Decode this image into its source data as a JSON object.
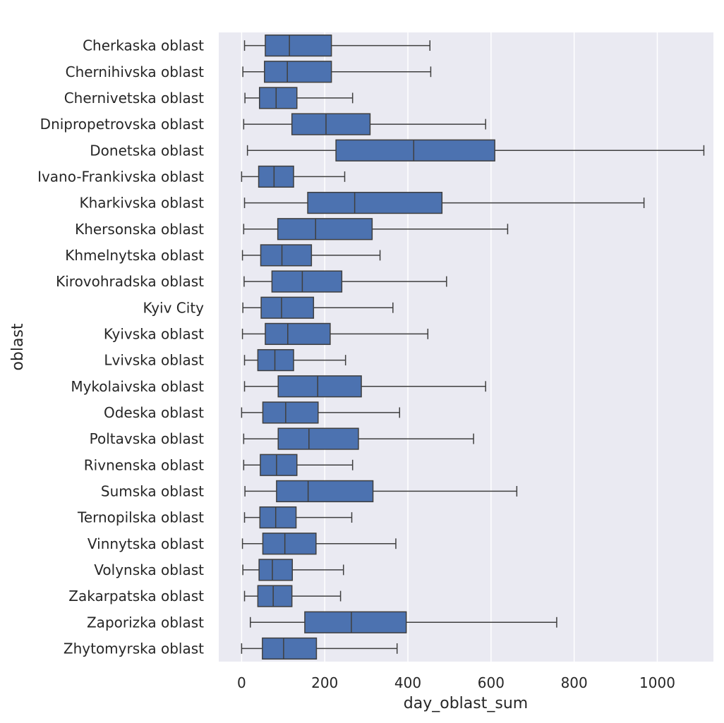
{
  "chart_data": {
    "type": "boxplot",
    "orientation": "horizontal",
    "xlabel": "day_oblast_sum",
    "ylabel": "oblast",
    "xlim": [
      -55,
      1135
    ],
    "xticks": [
      0,
      200,
      400,
      600,
      800,
      1000
    ],
    "grid": true,
    "colors": {
      "background": "#eaeaf2",
      "grid": "#ffffff",
      "box": "#4c72b0",
      "line": "#3f3f3f"
    },
    "categories": [
      "Cherkaska oblast",
      "Chernihivska oblast",
      "Chernivetska oblast",
      "Dnipropetrovska oblast",
      "Donetska oblast",
      "Ivano-Frankivska oblast",
      "Kharkivska oblast",
      "Khersonska oblast",
      "Khmelnytska oblast",
      "Kirovohradska oblast",
      "Kyiv City",
      "Kyivska oblast",
      "Lvivska oblast",
      "Mykolaivska oblast",
      "Odeska oblast",
      "Poltavska oblast",
      "Rivnenska oblast",
      "Sumska oblast",
      "Ternopilska oblast",
      "Vinnytska oblast",
      "Volynska oblast",
      "Zakarpatska oblast",
      "Zaporizka oblast",
      "Zhytomyrska oblast"
    ],
    "boxes": [
      {
        "whislo": 7,
        "q1": 57,
        "med": 115,
        "q3": 216,
        "whishi": 453
      },
      {
        "whislo": 3,
        "q1": 55,
        "med": 110,
        "q3": 216,
        "whishi": 455
      },
      {
        "whislo": 8,
        "q1": 43,
        "med": 83,
        "q3": 133,
        "whishi": 267
      },
      {
        "whislo": 5,
        "q1": 121,
        "med": 203,
        "q3": 309,
        "whishi": 587
      },
      {
        "whislo": 14,
        "q1": 227,
        "med": 414,
        "q3": 609,
        "whishi": 1112
      },
      {
        "whislo": 0,
        "q1": 41,
        "med": 78,
        "q3": 125,
        "whishi": 248
      },
      {
        "whislo": 7,
        "q1": 159,
        "med": 272,
        "q3": 482,
        "whishi": 968
      },
      {
        "whislo": 5,
        "q1": 87,
        "med": 178,
        "q3": 314,
        "whishi": 640
      },
      {
        "whislo": 2,
        "q1": 46,
        "med": 97,
        "q3": 168,
        "whishi": 333
      },
      {
        "whislo": 6,
        "q1": 73,
        "med": 146,
        "q3": 241,
        "whishi": 493
      },
      {
        "whislo": 3,
        "q1": 47,
        "med": 96,
        "q3": 173,
        "whishi": 364
      },
      {
        "whislo": 2,
        "q1": 57,
        "med": 111,
        "q3": 213,
        "whishi": 448
      },
      {
        "whislo": 7,
        "q1": 39,
        "med": 80,
        "q3": 125,
        "whishi": 250
      },
      {
        "whislo": 7,
        "q1": 88,
        "med": 183,
        "q3": 288,
        "whishi": 587
      },
      {
        "whislo": 0,
        "q1": 51,
        "med": 106,
        "q3": 184,
        "whishi": 380
      },
      {
        "whislo": 5,
        "q1": 88,
        "med": 162,
        "q3": 281,
        "whishi": 558
      },
      {
        "whislo": 5,
        "q1": 45,
        "med": 84,
        "q3": 133,
        "whishi": 267
      },
      {
        "whislo": 8,
        "q1": 84,
        "med": 160,
        "q3": 316,
        "whishi": 662
      },
      {
        "whislo": 7,
        "q1": 44,
        "med": 82,
        "q3": 131,
        "whishi": 265
      },
      {
        "whislo": 2,
        "q1": 51,
        "med": 104,
        "q3": 179,
        "whishi": 371
      },
      {
        "whislo": 3,
        "q1": 42,
        "med": 74,
        "q3": 122,
        "whishi": 245
      },
      {
        "whislo": 7,
        "q1": 39,
        "med": 76,
        "q3": 121,
        "whishi": 238
      },
      {
        "whislo": 21,
        "q1": 152,
        "med": 264,
        "q3": 396,
        "whishi": 758
      },
      {
        "whislo": 0,
        "q1": 50,
        "med": 101,
        "q3": 180,
        "whishi": 374
      }
    ]
  }
}
